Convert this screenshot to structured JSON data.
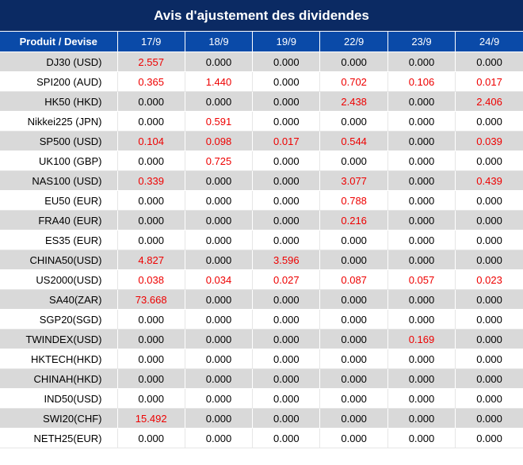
{
  "title": "Avis d'ajustement des dividendes",
  "header": [
    "Produit / Devise",
    "17/9",
    "18/9",
    "19/9",
    "22/9",
    "23/9",
    "24/9"
  ],
  "colors": {
    "title_bg": "#0b2a63",
    "header_bg": "#0a4aa8",
    "shade_row": "#d9d9d9",
    "highlight_text": "#ee0000"
  },
  "rows": [
    {
      "product": "DJ30 (USD)",
      "values": [
        "2.557",
        "0.000",
        "0.000",
        "0.000",
        "0.000",
        "0.000"
      ],
      "red": [
        true,
        false,
        false,
        false,
        false,
        false
      ]
    },
    {
      "product": "SPI200 (AUD)",
      "values": [
        "0.365",
        "1.440",
        "0.000",
        "0.702",
        "0.106",
        "0.017"
      ],
      "red": [
        true,
        true,
        false,
        true,
        true,
        true
      ]
    },
    {
      "product": "HK50 (HKD)",
      "values": [
        "0.000",
        "0.000",
        "0.000",
        "2.438",
        "0.000",
        "2.406"
      ],
      "red": [
        false,
        false,
        false,
        true,
        false,
        true
      ]
    },
    {
      "product": "Nikkei225 (JPN)",
      "values": [
        "0.000",
        "0.591",
        "0.000",
        "0.000",
        "0.000",
        "0.000"
      ],
      "red": [
        false,
        true,
        false,
        false,
        false,
        false
      ]
    },
    {
      "product": "SP500 (USD)",
      "values": [
        "0.104",
        "0.098",
        "0.017",
        "0.544",
        "0.000",
        "0.039"
      ],
      "red": [
        true,
        true,
        true,
        true,
        false,
        true
      ]
    },
    {
      "product": "UK100 (GBP)",
      "values": [
        "0.000",
        "0.725",
        "0.000",
        "0.000",
        "0.000",
        "0.000"
      ],
      "red": [
        false,
        true,
        false,
        false,
        false,
        false
      ]
    },
    {
      "product": "NAS100 (USD)",
      "values": [
        "0.339",
        "0.000",
        "0.000",
        "3.077",
        "0.000",
        "0.439"
      ],
      "red": [
        true,
        false,
        false,
        true,
        false,
        true
      ]
    },
    {
      "product": "EU50 (EUR)",
      "values": [
        "0.000",
        "0.000",
        "0.000",
        "0.788",
        "0.000",
        "0.000"
      ],
      "red": [
        false,
        false,
        false,
        true,
        false,
        false
      ]
    },
    {
      "product": "FRA40 (EUR)",
      "values": [
        "0.000",
        "0.000",
        "0.000",
        "0.216",
        "0.000",
        "0.000"
      ],
      "red": [
        false,
        false,
        false,
        true,
        false,
        false
      ]
    },
    {
      "product": "ES35 (EUR)",
      "values": [
        "0.000",
        "0.000",
        "0.000",
        "0.000",
        "0.000",
        "0.000"
      ],
      "red": [
        false,
        false,
        false,
        false,
        false,
        false
      ]
    },
    {
      "product": "CHINA50(USD)",
      "values": [
        "4.827",
        "0.000",
        "3.596",
        "0.000",
        "0.000",
        "0.000"
      ],
      "red": [
        true,
        false,
        true,
        false,
        false,
        false
      ]
    },
    {
      "product": "US2000(USD)",
      "values": [
        "0.038",
        "0.034",
        "0.027",
        "0.087",
        "0.057",
        "0.023"
      ],
      "red": [
        true,
        true,
        true,
        true,
        true,
        true
      ]
    },
    {
      "product": "SA40(ZAR)",
      "values": [
        "73.668",
        "0.000",
        "0.000",
        "0.000",
        "0.000",
        "0.000"
      ],
      "red": [
        true,
        false,
        false,
        false,
        false,
        false
      ]
    },
    {
      "product": "SGP20(SGD)",
      "values": [
        "0.000",
        "0.000",
        "0.000",
        "0.000",
        "0.000",
        "0.000"
      ],
      "red": [
        false,
        false,
        false,
        false,
        false,
        false
      ]
    },
    {
      "product": "TWINDEX(USD)",
      "values": [
        "0.000",
        "0.000",
        "0.000",
        "0.000",
        "0.169",
        "0.000"
      ],
      "red": [
        false,
        false,
        false,
        false,
        true,
        false
      ]
    },
    {
      "product": "HKTECH(HKD)",
      "values": [
        "0.000",
        "0.000",
        "0.000",
        "0.000",
        "0.000",
        "0.000"
      ],
      "red": [
        false,
        false,
        false,
        false,
        false,
        false
      ]
    },
    {
      "product": "CHINAH(HKD)",
      "values": [
        "0.000",
        "0.000",
        "0.000",
        "0.000",
        "0.000",
        "0.000"
      ],
      "red": [
        false,
        false,
        false,
        false,
        false,
        false
      ]
    },
    {
      "product": "IND50(USD)",
      "values": [
        "0.000",
        "0.000",
        "0.000",
        "0.000",
        "0.000",
        "0.000"
      ],
      "red": [
        false,
        false,
        false,
        false,
        false,
        false
      ]
    },
    {
      "product": "SWI20(CHF)",
      "values": [
        "15.492",
        "0.000",
        "0.000",
        "0.000",
        "0.000",
        "0.000"
      ],
      "red": [
        true,
        false,
        false,
        false,
        false,
        false
      ]
    },
    {
      "product": "NETH25(EUR)",
      "values": [
        "0.000",
        "0.000",
        "0.000",
        "0.000",
        "0.000",
        "0.000"
      ],
      "red": [
        false,
        false,
        false,
        false,
        false,
        false
      ]
    }
  ]
}
